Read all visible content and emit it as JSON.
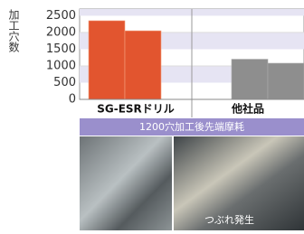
{
  "chart_data": {
    "type": "bar",
    "y_label": "加工穴数",
    "categories": [
      "SG-ESRドリル",
      "他社品"
    ],
    "category_colors": [
      "#e2552f",
      "#8e8e8e"
    ],
    "series": [
      {
        "values": [
          2350,
          1200
        ]
      },
      {
        "values": [
          2050,
          1080
        ]
      }
    ],
    "ylim": [
      0,
      2700
    ],
    "yticks": [
      0,
      500,
      1000,
      1500,
      2000,
      2500
    ],
    "grid": true,
    "footer": "1200穴加工後先端摩耗",
    "annotation": "つぶれ発生"
  }
}
